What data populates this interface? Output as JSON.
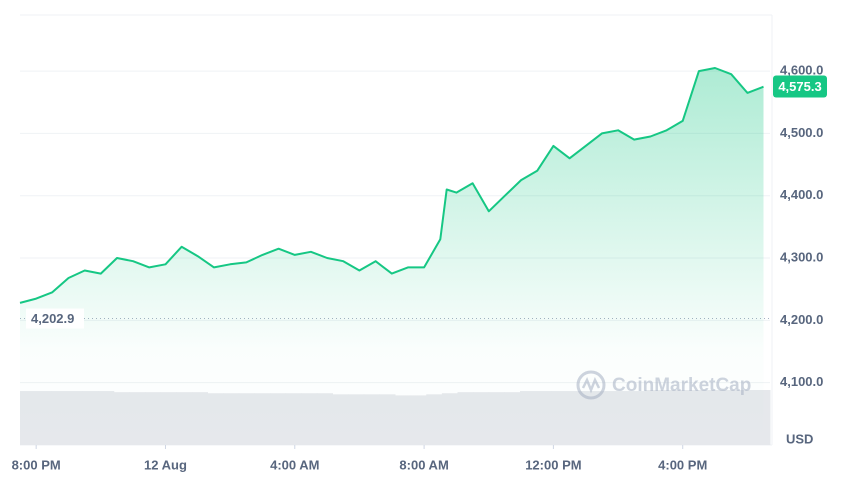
{
  "chart_data": {
    "type": "line",
    "color": "#16c784",
    "x": [
      -0.5,
      0,
      0.5,
      1,
      1.5,
      2,
      2.5,
      3,
      3.5,
      4,
      4.5,
      5,
      5.5,
      6,
      6.5,
      7,
      7.5,
      8,
      8.5,
      9,
      9.5,
      10,
      10.5,
      11,
      11.5,
      12,
      12.5,
      12.7,
      13,
      13.5,
      14,
      14.5,
      15,
      15.5,
      16,
      16.5,
      17,
      17.5,
      18,
      18.5,
      19,
      19.5,
      20,
      20.5,
      21,
      21.5,
      22,
      22.5
    ],
    "values": [
      4228,
      4235,
      4245,
      4268,
      4280,
      4275,
      4300,
      4295,
      4285,
      4290,
      4318,
      4303,
      4285,
      4290,
      4293,
      4305,
      4315,
      4305,
      4310,
      4300,
      4295,
      4280,
      4295,
      4275,
      4285,
      4285,
      4330,
      4410,
      4405,
      4420,
      4375,
      4400,
      4425,
      4440,
      4480,
      4460,
      4480,
      4500,
      4505,
      4490,
      4495,
      4505,
      4520,
      4600,
      4605,
      4595,
      4565,
      4575
    ],
    "volume": [
      50,
      50,
      50,
      50,
      50,
      50,
      49,
      49,
      49,
      49,
      49,
      49,
      48,
      48,
      48,
      48,
      48,
      48,
      48,
      48,
      47,
      47,
      47,
      47,
      46,
      46,
      47,
      48,
      49,
      49,
      49,
      49,
      50,
      50,
      50,
      50,
      50,
      50,
      50,
      50,
      51,
      51,
      51,
      51,
      51,
      51,
      51,
      51
    ],
    "volume_color": "#e6e8ec",
    "xlim": [
      -0.5,
      22.7
    ],
    "xticks": [
      {
        "value": 0,
        "label": "8:00 PM"
      },
      {
        "value": 4,
        "label": "12 Aug"
      },
      {
        "value": 8,
        "label": "4:00 AM"
      },
      {
        "value": 12,
        "label": "8:00 AM"
      },
      {
        "value": 16,
        "label": "12:00 PM"
      },
      {
        "value": 20,
        "label": "4:00 PM"
      }
    ],
    "ylim": [
      4000,
      4690
    ],
    "yticks": [
      {
        "value": 4100,
        "label": "4,100.0"
      },
      {
        "value": 4200,
        "label": "4,200.0"
      },
      {
        "value": 4300,
        "label": "4,300.0"
      },
      {
        "value": 4400,
        "label": "4,400.0"
      },
      {
        "value": 4500,
        "label": "4,500.0"
      },
      {
        "value": 4600,
        "label": "4,600.0"
      }
    ],
    "grid": true,
    "reference_line": {
      "value": 4202.9,
      "label": "4,202.9"
    },
    "last_price": {
      "value": 4575.3,
      "label": "4,575.3"
    },
    "currency": "USD",
    "watermark": "CoinMarketCap"
  }
}
